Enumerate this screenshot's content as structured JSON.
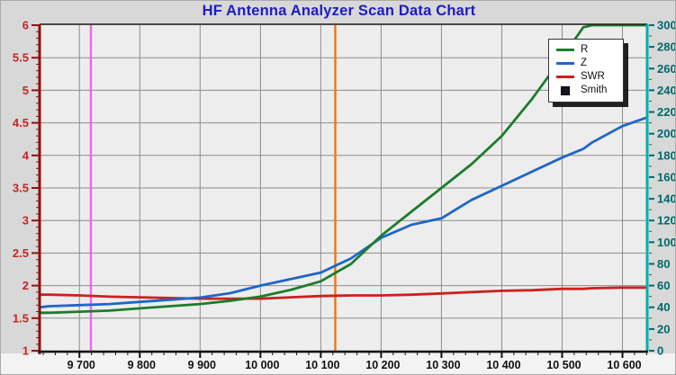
{
  "title": "HF Antenna Analyzer Scan Data Chart",
  "title_color": "#1c1cc4",
  "legend": {
    "items": [
      {
        "label": "R",
        "color": "#1b7d2c",
        "swatch": "line"
      },
      {
        "label": "Z",
        "color": "#1e66c8",
        "swatch": "line"
      },
      {
        "label": "SWR",
        "color": "#cc2020",
        "swatch": "line"
      },
      {
        "label": "Smith",
        "color": "#15152a",
        "swatch": "square"
      }
    ]
  },
  "chart_data": {
    "type": "line",
    "title": "HF Antenna Analyzer Scan Data Chart",
    "grid": true,
    "x": [
      9634,
      9650,
      9700,
      9750,
      9800,
      9850,
      9900,
      9950,
      10000,
      10050,
      10100,
      10150,
      10200,
      10250,
      10300,
      10350,
      10400,
      10450,
      10500,
      10535,
      10550,
      10600,
      10641
    ],
    "series": [
      {
        "name": "R",
        "axis": "right",
        "color": "#1b7d2c",
        "values": [
          35,
          35,
          36,
          37,
          39,
          41,
          43,
          46,
          50,
          56,
          64,
          80,
          106,
          128,
          150,
          172,
          198,
          232,
          270,
          298,
          300,
          300,
          300
        ]
      },
      {
        "name": "Z",
        "axis": "right",
        "color": "#1e66c8",
        "values": [
          40,
          41,
          42,
          43,
          45,
          47,
          49,
          53,
          60,
          66,
          72,
          85,
          104,
          116,
          122,
          139,
          152,
          165,
          178,
          186,
          192,
          207,
          215
        ]
      },
      {
        "name": "SWR",
        "axis": "left",
        "color": "#cc2020",
        "values": [
          1.86,
          1.86,
          1.85,
          1.83,
          1.82,
          1.81,
          1.8,
          1.8,
          1.8,
          1.82,
          1.84,
          1.85,
          1.85,
          1.86,
          1.88,
          1.9,
          1.92,
          1.93,
          1.95,
          1.95,
          1.96,
          1.97,
          1.97
        ]
      }
    ],
    "x_axis": {
      "min": 9634,
      "max": 10641,
      "tick_step": 100,
      "minor_step": 20,
      "ticks": [
        9700,
        9800,
        9900,
        10000,
        10100,
        10200,
        10300,
        10400,
        10500,
        10600
      ],
      "tick_labels": [
        "9 700",
        "9 800",
        "9 900",
        "10 000",
        "10 100",
        "10 200",
        "10 300",
        "10 400",
        "10 500",
        "10 600"
      ],
      "axis_color": "#111111",
      "label_color": "#111111"
    },
    "left_axis": {
      "min": 1,
      "max": 6,
      "tick_step": 0.5,
      "minor_step": 0.1,
      "tick_labels": [
        "6",
        "5.5",
        "5",
        "4.5",
        "4",
        "3.5",
        "3",
        "2.5",
        "2",
        "1.5",
        "1"
      ],
      "tick_values": [
        6,
        5.5,
        5,
        4.5,
        4,
        3.5,
        3,
        2.5,
        2,
        1.5,
        1
      ],
      "axis_color": "#8f1010",
      "label_color": "#cc2222"
    },
    "right_axis": {
      "min": 0,
      "max": 300,
      "tick_step": 20,
      "minor_step": 10,
      "tick_labels": [
        "300",
        "280",
        "260",
        "240",
        "220",
        "200",
        "180",
        "160",
        "140",
        "120",
        "100",
        "80",
        "60",
        "40",
        "20",
        "0"
      ],
      "tick_values": [
        300,
        280,
        260,
        240,
        220,
        200,
        180,
        160,
        140,
        120,
        100,
        80,
        60,
        40,
        20,
        0
      ],
      "axis_color": "#00b0b0",
      "label_color": "#006868"
    },
    "markers": [
      {
        "name": "magenta-cursor",
        "x": 9719,
        "color": "#ee66ee"
      },
      {
        "name": "orange-cursor",
        "x": 10124,
        "color": "#e8781e"
      }
    ],
    "colors": {
      "plot_background": "#eeeded",
      "outer_background": "#d8d8d8",
      "bottom_strip": "#f3f3f3",
      "gridline": "#8c8c8c",
      "top_border": "#1a1a1a"
    }
  }
}
